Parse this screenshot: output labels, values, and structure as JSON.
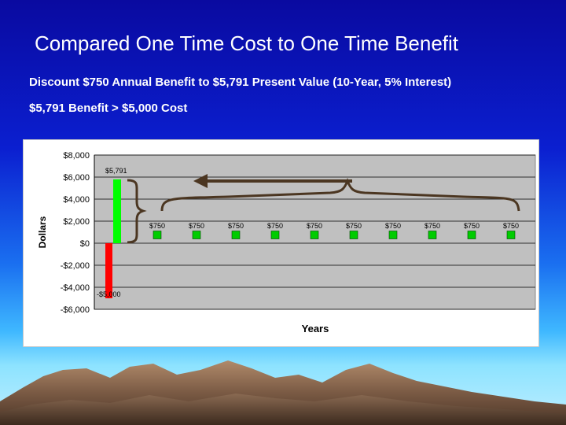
{
  "slide": {
    "title": "Compared One Time Cost to One Time Benefit",
    "subtitle1": "Discount $750 Annual Benefit to $5,791 Present Value  (10-Year, 5% Interest)",
    "subtitle2": "$5,791 Benefit > $5,000 Cost"
  },
  "colors": {
    "plot_background": "#c0c0c0",
    "cost_bar": "#ff0000",
    "benefit_bar": "#00ff00",
    "annual_marker": "#00cc00",
    "arrow": "#4b3621"
  },
  "chart_data": {
    "type": "bar",
    "title": "",
    "xlabel": "Years",
    "ylabel": "Dollars",
    "ylim": [
      -6000,
      8000
    ],
    "yticks": [
      8000,
      6000,
      4000,
      2000,
      0,
      -2000,
      -4000,
      -6000
    ],
    "ytick_labels": [
      "$8,000",
      "$6,000",
      "$4,000",
      "$2,000",
      "$0",
      "-$2,000",
      "-$4,000",
      "-$6,000"
    ],
    "grid": true,
    "series": [
      {
        "values": [
          -5000
        ],
        "labels": [
          "-$5,000"
        ]
      },
      {
        "values": [
          5791
        ],
        "labels": [
          "$5,791"
        ]
      },
      {
        "values": [
          750,
          750,
          750,
          750,
          750,
          750,
          750,
          750,
          750,
          750
        ],
        "labels": [
          "$750",
          "$750",
          "$750",
          "$750",
          "$750",
          "$750",
          "$750",
          "$750",
          "$750",
          "$750"
        ]
      }
    ],
    "annotations": [
      "Annual benefits brace with arrow pointing to present value"
    ]
  }
}
